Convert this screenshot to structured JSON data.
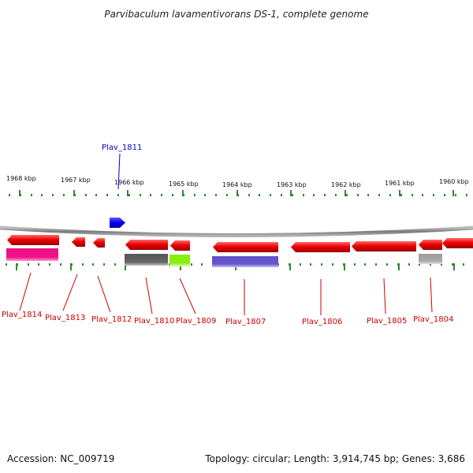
{
  "title": "Parvibaculum lavamentivorans DS-1, complete genome",
  "accession": "Accession: NC_009719",
  "topology": "Topology: circular; Length: 3,914,745 bp; Genes: 3,686",
  "colors": {
    "backbone": "#8a8a8a",
    "tick": "#2e8b2e",
    "label_red": "#cc0000",
    "label_blue": "#0000cc",
    "gene_red": "#ee0000",
    "gene_blue": "#0000ee",
    "gene_magenta": "#ee1188",
    "gene_gray": "#666666",
    "gene_green": "#88ee11",
    "gene_purple": "#6655cc",
    "gene_lightgray": "#aaaaaa"
  },
  "kbp_labels": [
    "1968 kbp",
    "1967 kbp",
    "1966 kbp",
    "1965 kbp",
    "1964 kbp",
    "1963 kbp",
    "1962 kbp",
    "1961 kbp",
    "1960 kbp"
  ],
  "gene_labels": [
    {
      "name": "Plav_1814",
      "color": "red"
    },
    {
      "name": "Plav_1813",
      "color": "red"
    },
    {
      "name": "Plav_1812",
      "color": "red"
    },
    {
      "name": "Plav_1811",
      "color": "blue"
    },
    {
      "name": "Plav_1810",
      "color": "red"
    },
    {
      "name": "Plav_1809",
      "color": "red"
    },
    {
      "name": "Plav_1807",
      "color": "red"
    },
    {
      "name": "Plav_1806",
      "color": "red"
    },
    {
      "name": "Plav_1805",
      "color": "red"
    },
    {
      "name": "Plav_1804",
      "color": "red"
    }
  ]
}
